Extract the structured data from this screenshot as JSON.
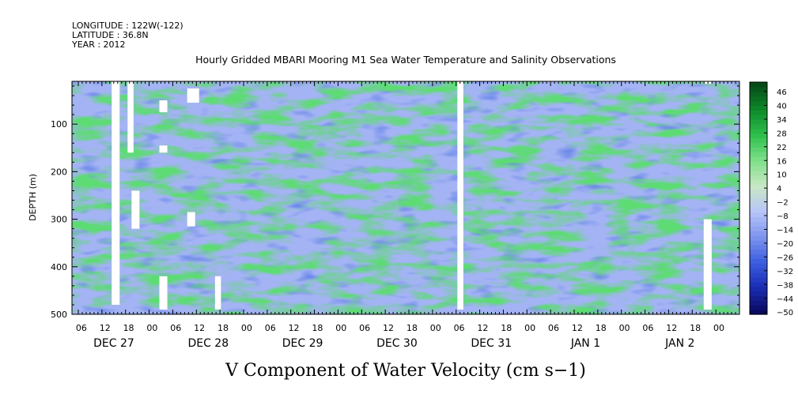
{
  "header": {
    "longitude": "LONGITUDE : 122W(-122)",
    "latitude": "LATITUDE : 36.8N",
    "year": "YEAR : 2012"
  },
  "chart_data": {
    "type": "heatmap",
    "title": "Hourly Gridded MBARI Mooring M1 Sea Water Temperature and Salinity Observations",
    "bottom_title": "V Component of Water Velocity (cm s−1)",
    "ylabel": "DEPTH (m)",
    "ylim": [
      500,
      10
    ],
    "y_ticks": [
      100,
      200,
      300,
      400,
      500
    ],
    "y_tick_labels": [
      "100",
      "200",
      "300",
      "400",
      "500"
    ],
    "x_range_hours": [
      0,
      168
    ],
    "x_hour_ticks": [
      "06",
      "12",
      "18",
      "00",
      "06",
      "12",
      "18",
      "00",
      "06",
      "12",
      "18",
      "00",
      "06",
      "12",
      "18",
      "00",
      "06",
      "12",
      "18",
      "00",
      "06",
      "12",
      "18",
      "00",
      "06",
      "12",
      "18",
      "00"
    ],
    "x_date_labels": [
      "DEC 27",
      "DEC 28",
      "DEC 29",
      "DEC 30",
      "DEC 31",
      "JAN 1",
      "JAN 2"
    ],
    "colorbar": {
      "min": -50,
      "max": 50,
      "step": 2,
      "tick_labels": [
        "46",
        "40",
        "34",
        "28",
        "22",
        "16",
        "10",
        "4",
        "−2",
        "−8",
        "−14",
        "−20",
        "−26",
        "−32",
        "−38",
        "−44",
        "−50"
      ],
      "colors": [
        "#0a0a5e",
        "#1a2db4",
        "#3c5fe0",
        "#7f95ee",
        "#b9c6f8",
        "#c8e8c4",
        "#7fe08a",
        "#2ec04c",
        "#0d8a2a",
        "#064a18"
      ]
    },
    "data_gaps": [
      {
        "hours": [
          0,
          2
        ],
        "depth": [
          10,
          480
        ]
      },
      {
        "hours": [
          4,
          5.5
        ],
        "depth": [
          10,
          160
        ]
      },
      {
        "hours": [
          12,
          14
        ],
        "depth": [
          50,
          75
        ]
      },
      {
        "hours": [
          12,
          14
        ],
        "depth": [
          145,
          160
        ]
      },
      {
        "hours": [
          12,
          14
        ],
        "depth": [
          420,
          490
        ]
      },
      {
        "hours": [
          19,
          22
        ],
        "depth": [
          25,
          55
        ]
      },
      {
        "hours": [
          5,
          7
        ],
        "depth": [
          240,
          320
        ]
      },
      {
        "hours": [
          19,
          21
        ],
        "depth": [
          285,
          315
        ]
      },
      {
        "hours": [
          26,
          27.5
        ],
        "depth": [
          420,
          490
        ]
      },
      {
        "hours": [
          87,
          88.5
        ],
        "depth": [
          10,
          490
        ]
      },
      {
        "hours": [
          149,
          151
        ],
        "depth": [
          300,
          490
        ]
      },
      {
        "hours": [
          149,
          151
        ],
        "depth": [
          10,
          15
        ]
      }
    ]
  }
}
